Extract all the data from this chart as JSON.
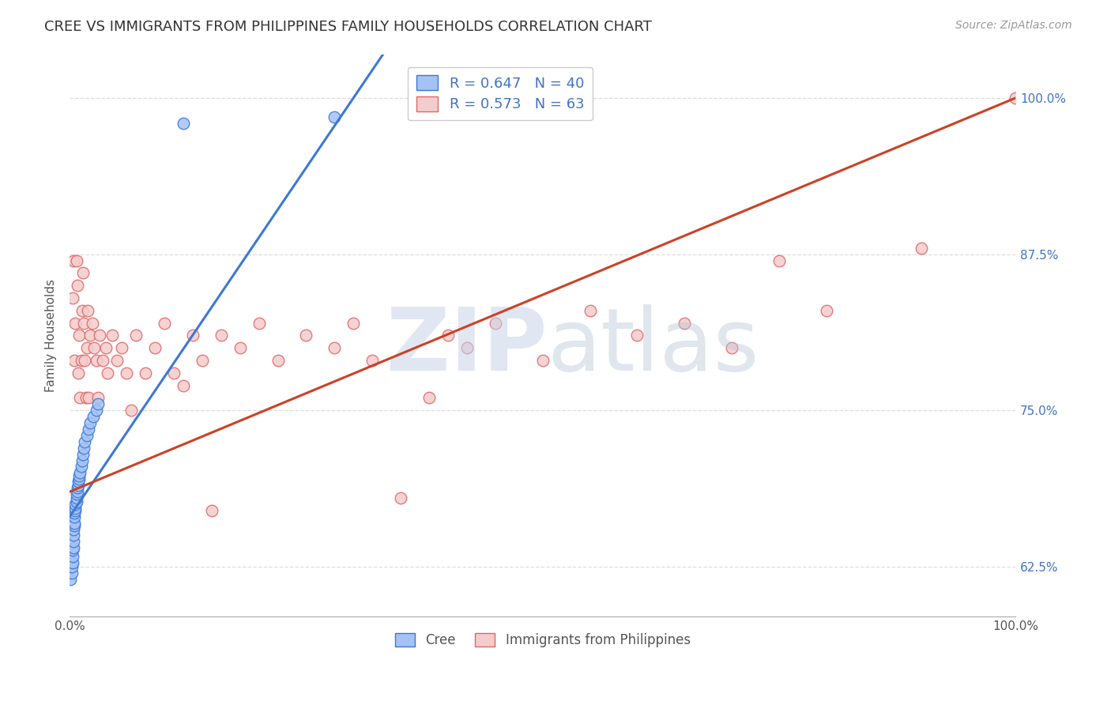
{
  "title": "CREE VS IMMIGRANTS FROM PHILIPPINES FAMILY HOUSEHOLDS CORRELATION CHART",
  "source": "Source: ZipAtlas.com",
  "ylabel": "Family Households",
  "legend_label_blue": "R = 0.647   N = 40",
  "legend_label_pink": "R = 0.573   N = 63",
  "legend_bottom_blue": "Cree",
  "legend_bottom_pink": "Immigrants from Philippines",
  "blue_fill": "#a4c2f4",
  "pink_fill": "#f4cccc",
  "blue_edge": "#3c78d8",
  "pink_edge": "#e06666",
  "blue_line": "#3c78d8",
  "pink_line": "#cc4125",
  "x_min": 0.0,
  "x_max": 1.0,
  "y_min": 0.585,
  "y_max": 1.035,
  "yticks": [
    0.625,
    0.75,
    0.875,
    1.0
  ],
  "ytick_labels": [
    "62.5%",
    "75.0%",
    "87.5%",
    "100.0%"
  ],
  "xticks": [
    0.0,
    1.0
  ],
  "xtick_labels": [
    "0.0%",
    "100.0%"
  ],
  "cree_x": [
    0.001,
    0.002,
    0.002,
    0.003,
    0.003,
    0.003,
    0.004,
    0.004,
    0.004,
    0.004,
    0.005,
    0.005,
    0.005,
    0.005,
    0.006,
    0.006,
    0.006,
    0.007,
    0.007,
    0.007,
    0.008,
    0.008,
    0.009,
    0.009,
    0.01,
    0.01,
    0.011,
    0.012,
    0.013,
    0.014,
    0.015,
    0.016,
    0.018,
    0.02,
    0.022,
    0.025,
    0.028,
    0.03,
    0.12,
    0.28
  ],
  "cree_y": [
    0.615,
    0.62,
    0.625,
    0.628,
    0.633,
    0.638,
    0.64,
    0.645,
    0.65,
    0.655,
    0.658,
    0.66,
    0.665,
    0.668,
    0.67,
    0.672,
    0.675,
    0.677,
    0.68,
    0.683,
    0.685,
    0.688,
    0.69,
    0.693,
    0.695,
    0.698,
    0.7,
    0.705,
    0.71,
    0.715,
    0.72,
    0.725,
    0.73,
    0.735,
    0.74,
    0.745,
    0.75,
    0.755,
    0.98,
    0.985
  ],
  "phil_x": [
    0.003,
    0.004,
    0.005,
    0.006,
    0.007,
    0.008,
    0.009,
    0.01,
    0.011,
    0.012,
    0.013,
    0.014,
    0.015,
    0.016,
    0.017,
    0.018,
    0.019,
    0.02,
    0.022,
    0.024,
    0.026,
    0.028,
    0.03,
    0.032,
    0.035,
    0.038,
    0.04,
    0.045,
    0.05,
    0.055,
    0.06,
    0.065,
    0.07,
    0.08,
    0.09,
    0.1,
    0.11,
    0.12,
    0.13,
    0.14,
    0.15,
    0.16,
    0.18,
    0.2,
    0.22,
    0.25,
    0.28,
    0.3,
    0.32,
    0.35,
    0.38,
    0.4,
    0.42,
    0.45,
    0.5,
    0.55,
    0.6,
    0.65,
    0.7,
    0.75,
    0.8,
    0.9,
    1.0
  ],
  "phil_y": [
    0.84,
    0.87,
    0.79,
    0.82,
    0.87,
    0.85,
    0.78,
    0.81,
    0.76,
    0.79,
    0.83,
    0.86,
    0.82,
    0.79,
    0.76,
    0.8,
    0.83,
    0.76,
    0.81,
    0.82,
    0.8,
    0.79,
    0.76,
    0.81,
    0.79,
    0.8,
    0.78,
    0.81,
    0.79,
    0.8,
    0.78,
    0.75,
    0.81,
    0.78,
    0.8,
    0.82,
    0.78,
    0.77,
    0.81,
    0.79,
    0.67,
    0.81,
    0.8,
    0.82,
    0.79,
    0.81,
    0.8,
    0.82,
    0.79,
    0.68,
    0.76,
    0.81,
    0.8,
    0.82,
    0.79,
    0.83,
    0.81,
    0.82,
    0.8,
    0.87,
    0.83,
    0.88,
    1.0
  ],
  "watermark_zip_color": "#c8d4e8",
  "watermark_atlas_color": "#b8c8d8",
  "grid_color": "#dddddd",
  "title_fontsize": 13,
  "source_fontsize": 10,
  "legend_fontsize": 13,
  "axis_label_fontsize": 11,
  "ylabel_fontsize": 11
}
